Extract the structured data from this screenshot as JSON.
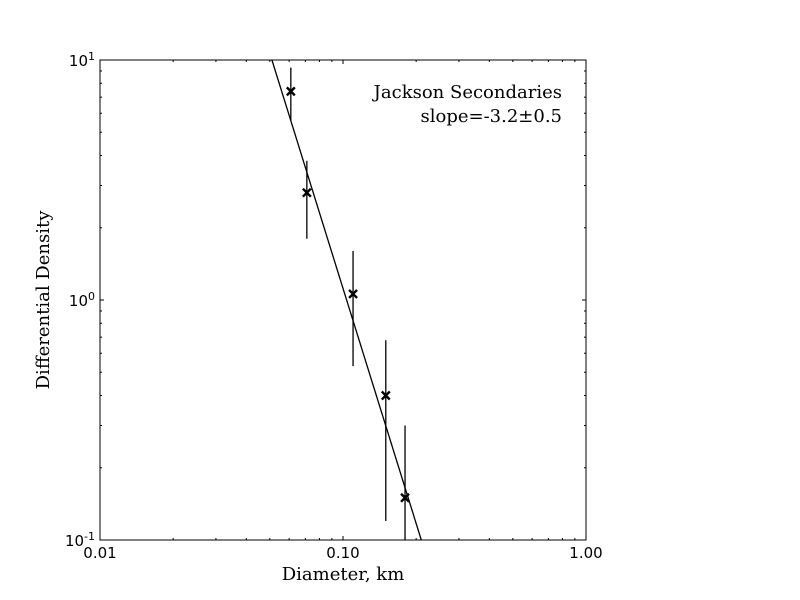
{
  "chart_data": {
    "type": "scatter",
    "title": "",
    "xlabel": "Diameter, km",
    "ylabel": "Differential Density",
    "xscale": "log",
    "yscale": "log",
    "xlim": [
      0.01,
      1.0
    ],
    "ylim": [
      0.1,
      10
    ],
    "grid": false,
    "x_tick_labels": [
      "0.01",
      "0.10",
      "1.00"
    ],
    "y_tick_labels": [
      {
        "base": "10",
        "exp": "-1"
      },
      {
        "base": "10",
        "exp": "0"
      },
      {
        "base": "10",
        "exp": "1"
      }
    ],
    "annotation": {
      "line1": "Jackson Secondaries",
      "line2": "slope=-3.2±0.5",
      "placement": "top-right"
    },
    "marker": "x",
    "color": "#000000",
    "points": [
      {
        "x": 0.061,
        "y": 7.4,
        "y_low": 5.6,
        "y_high": 9.3
      },
      {
        "x": 0.071,
        "y": 2.8,
        "y_low": 1.8,
        "y_high": 3.8
      },
      {
        "x": 0.11,
        "y": 1.06,
        "y_low": 0.53,
        "y_high": 1.6
      },
      {
        "x": 0.15,
        "y": 0.4,
        "y_low": 0.12,
        "y_high": 0.68
      },
      {
        "x": 0.18,
        "y": 0.15,
        "y_low": 0.1,
        "y_high": 0.3
      }
    ],
    "fit_line": {
      "slope": -3.2,
      "points": [
        [
          0.051,
          10
        ],
        [
          0.21,
          0.1
        ]
      ]
    }
  }
}
